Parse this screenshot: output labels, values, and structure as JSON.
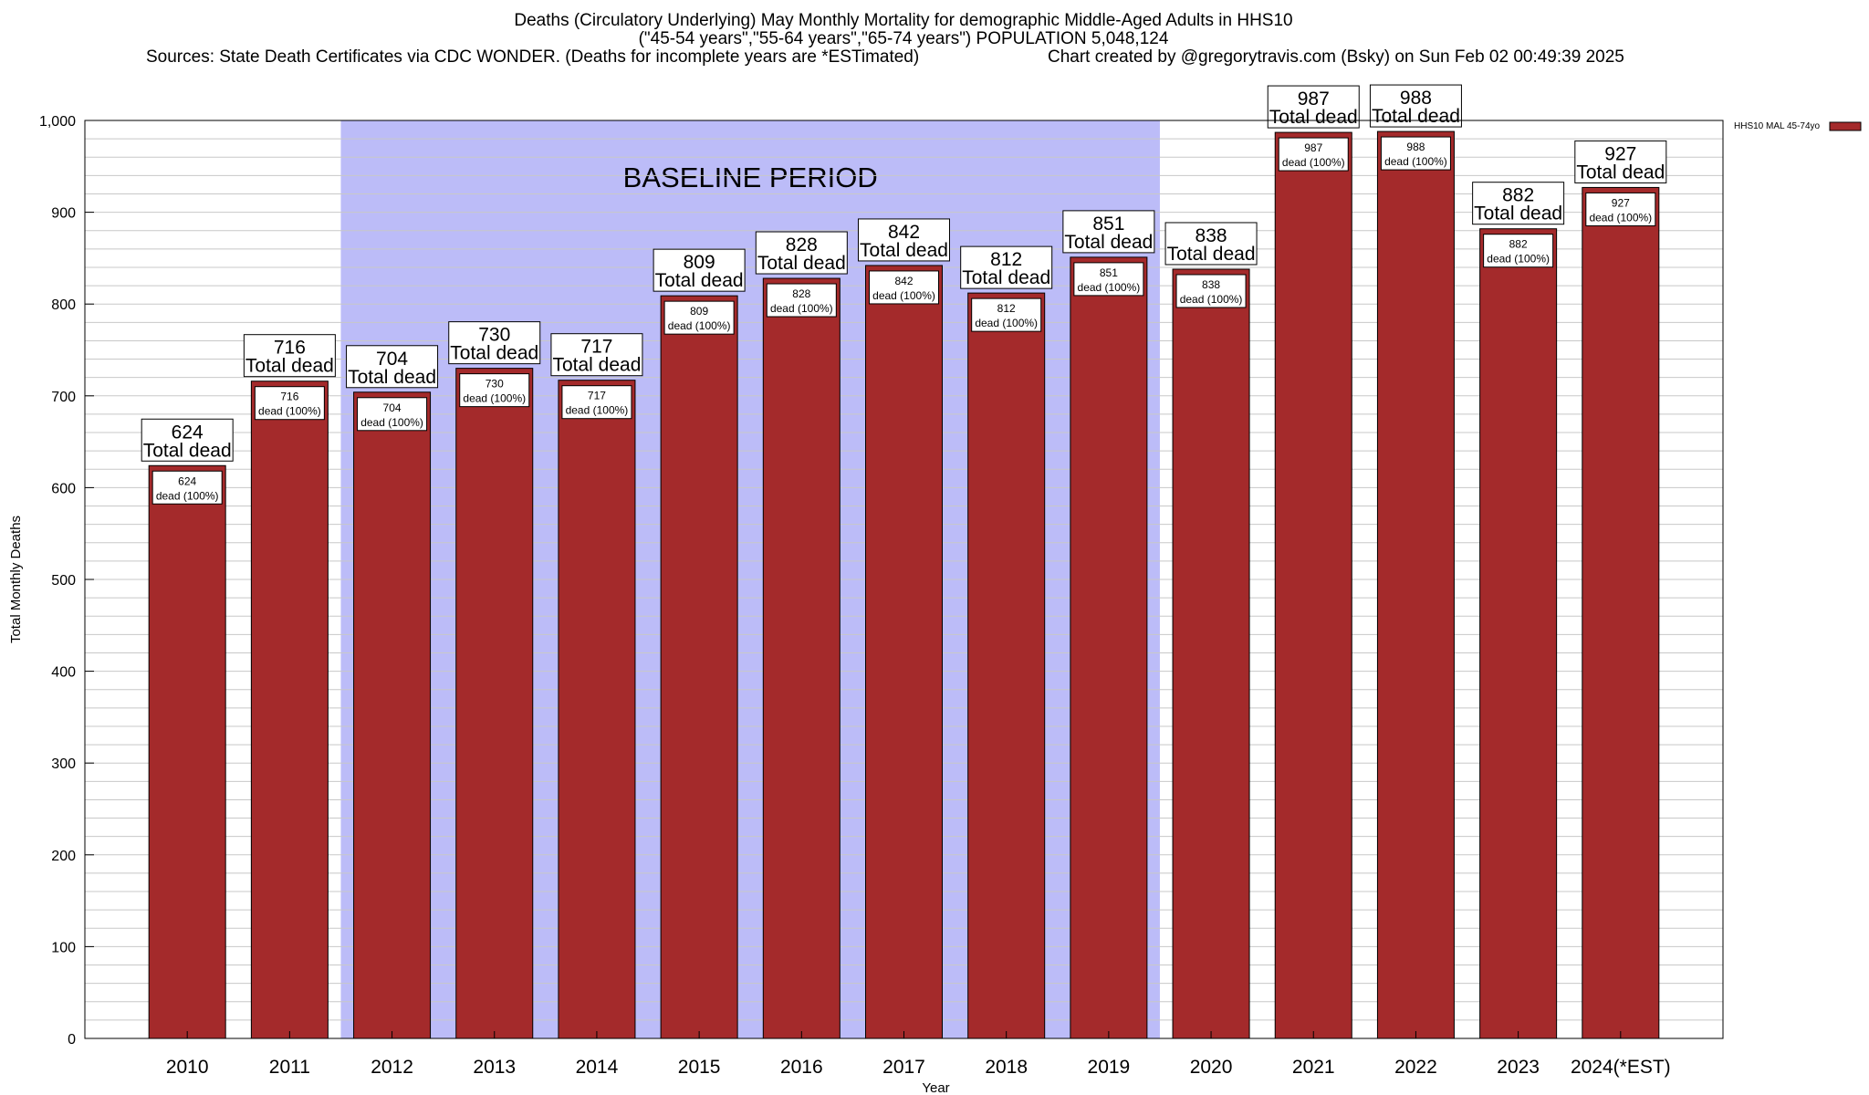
{
  "chart_data": {
    "type": "bar",
    "title": "Deaths (Circulatory Underlying) May Monthly Mortality for demographic Middle-Aged Adults in HHS10",
    "subtitle": "(\"45-54 years\",\"55-64 years\",\"65-74 years\") POPULATION 5,048,124",
    "sources": "Sources: State Death Certificates via CDC WONDER. (Deaths for incomplete years are *ESTimated)",
    "credit": "Chart created by @gregorytravis.com (Bsky) on Sun Feb 02 00:49:39 2025",
    "xlabel": "Year",
    "ylabel": "Total Monthly Deaths",
    "ylim": [
      0,
      1000
    ],
    "yticks": [
      "0",
      "100",
      "200",
      "300",
      "400",
      "500",
      "600",
      "700",
      "800",
      "900",
      "1,000"
    ],
    "categories": [
      "2010",
      "2011",
      "2012",
      "2013",
      "2014",
      "2015",
      "2016",
      "2017",
      "2018",
      "2019",
      "2020",
      "2021",
      "2022",
      "2023",
      "2024(*EST)"
    ],
    "series": [
      {
        "name": "HHS10 MAL 45-74yo",
        "values": [
          624,
          716,
          704,
          730,
          717,
          809,
          828,
          842,
          812,
          851,
          838,
          987,
          988,
          882,
          927
        ]
      }
    ],
    "total_label": "Total dead",
    "inner_label": "dead (100%)",
    "baseline": {
      "label": "BASELINE PERIOD",
      "from": "2012",
      "to": "2019"
    },
    "legend_position": "top-right",
    "grid": true,
    "colors": {
      "bar": "#a42a2b",
      "baseline": "#bcbcf8",
      "grid": "#c8c8c8"
    }
  }
}
